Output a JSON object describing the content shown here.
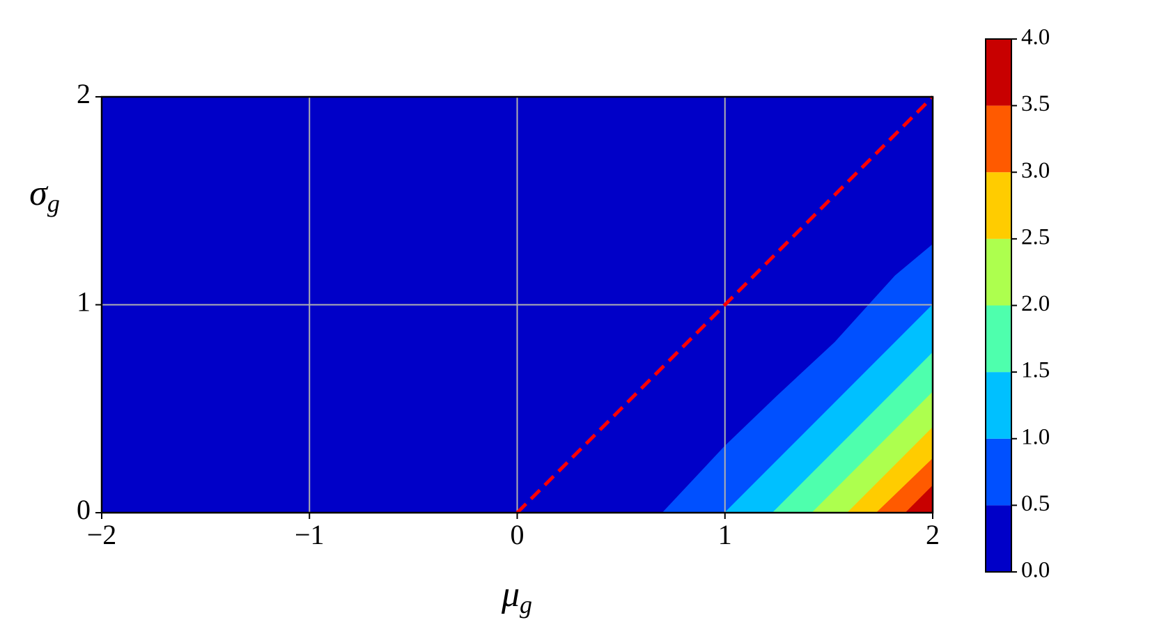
{
  "chart_data": {
    "type": "contourf",
    "x_label": {
      "symbol": "μ",
      "subscript": "g"
    },
    "y_label": {
      "symbol": "σ",
      "subscript": "g"
    },
    "xlim": [
      -2,
      2
    ],
    "ylim": [
      0,
      2
    ],
    "xticks": [
      {
        "value": -2,
        "label": "−2"
      },
      {
        "value": -1,
        "label": "−1"
      },
      0,
      1,
      2
    ],
    "yticks": [
      0,
      1,
      2
    ],
    "grid": true,
    "grid_color": "#b0b0b0",
    "contours": [
      {
        "level": 0.5,
        "x": [
          0.7,
          1.0,
          1.25,
          1.53,
          1.82,
          2.0
        ],
        "y": [
          0,
          0.32,
          0.56,
          0.82,
          1.14,
          1.29
        ]
      },
      {
        "level": 1.0,
        "x": [
          1.0,
          1.46,
          1.75,
          2.0
        ],
        "y": [
          0,
          0.46,
          0.75,
          1.0
        ]
      },
      {
        "level": 1.5,
        "x": [
          1.23,
          1.6,
          2.0
        ],
        "y": [
          0,
          0.37,
          0.77
        ]
      },
      {
        "level": 2.0,
        "x": [
          1.42,
          1.72,
          2.0
        ],
        "y": [
          0,
          0.3,
          0.58
        ]
      },
      {
        "level": 2.5,
        "x": [
          1.59,
          2.0
        ],
        "y": [
          0,
          0.41
        ]
      },
      {
        "level": 3.0,
        "x": [
          1.73,
          2.0
        ],
        "y": [
          0,
          0.26
        ]
      },
      {
        "level": 3.5,
        "x": [
          1.87,
          2.0
        ],
        "y": [
          0,
          0.13
        ]
      }
    ],
    "reference_line": {
      "x": [
        0,
        2
      ],
      "y": [
        0,
        2
      ],
      "color": "#ff0000",
      "style": "dashed"
    },
    "colorbar": {
      "lim": [
        0,
        4
      ],
      "levels": [
        0,
        0.5,
        1,
        1.5,
        2,
        2.5,
        3,
        3.5,
        4
      ],
      "colors": [
        "#0000c8",
        "#0050ff",
        "#00c0ff",
        "#4effad",
        "#adff4e",
        "#ffcc00",
        "#ff5a00",
        "#c80000"
      ],
      "ticks": [
        {
          "value": 0,
          "label": "0.0"
        },
        0.5,
        {
          "value": 1,
          "label": "1.0"
        },
        1.5,
        {
          "value": 2,
          "label": "2.0"
        },
        2.5,
        {
          "value": 3,
          "label": "3.0"
        },
        3.5,
        {
          "value": 4,
          "label": "4.0"
        }
      ]
    }
  }
}
